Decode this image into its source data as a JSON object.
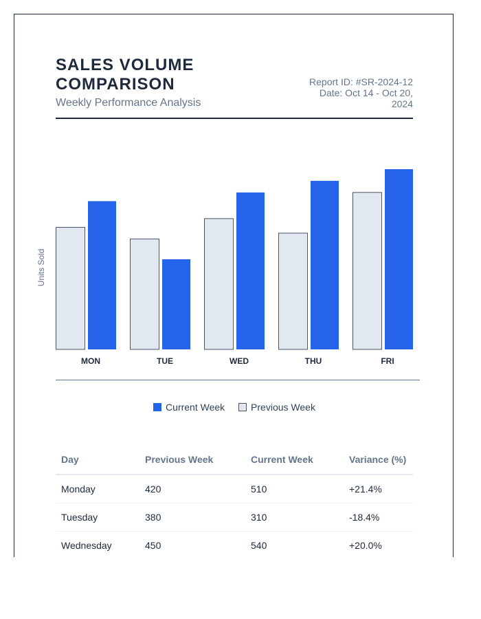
{
  "header": {
    "title": "SALES VOLUME COMPARISON",
    "subtitle": "Weekly Performance Analysis",
    "report_id": "Report ID: #SR-2024-12",
    "date_range": "Date: Oct 14 - Oct 20, 2024"
  },
  "legend": {
    "current_label": "Current Week",
    "previous_label": "Previous Week"
  },
  "colors": {
    "current": "#2563eb",
    "previous": "#e2e8f0",
    "previous_stroke": "#475569",
    "positive": "#059669",
    "negative": "#dc2626"
  },
  "chart_data": {
    "type": "bar",
    "title": "",
    "xlabel": "",
    "ylabel": "Units Sold",
    "categories": [
      "MON",
      "TUE",
      "WED",
      "THU",
      "FRI"
    ],
    "series": [
      {
        "name": "Previous Week",
        "values": [
          420,
          380,
          450,
          400,
          540
        ]
      },
      {
        "name": "Current Week",
        "values": [
          510,
          310,
          540,
          580,
          620
        ]
      }
    ],
    "ylim": [
      0,
      620
    ],
    "grid": false,
    "legend_position": "bottom"
  },
  "table": {
    "headers": [
      "Day",
      "Previous Week",
      "Current Week",
      "Variance (%)"
    ],
    "rows": [
      {
        "day": "Monday",
        "previous": "420",
        "current": "510",
        "variance": "+21.4%",
        "trend": "pos"
      },
      {
        "day": "Tuesday",
        "previous": "380",
        "current": "310",
        "variance": "-18.4%",
        "trend": "neg"
      },
      {
        "day": "Wednesday",
        "previous": "450",
        "current": "540",
        "variance": "+20.0%",
        "trend": "pos"
      }
    ]
  }
}
